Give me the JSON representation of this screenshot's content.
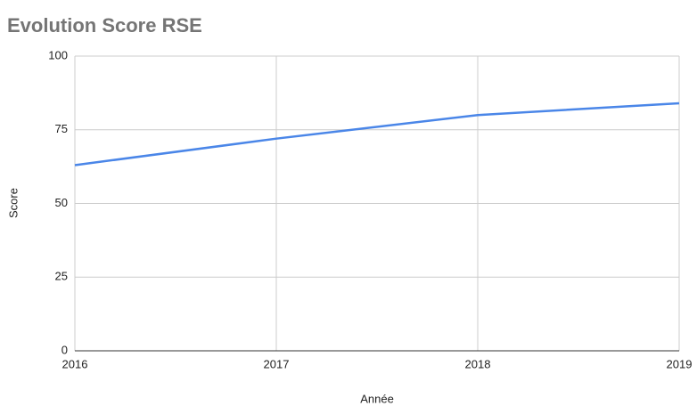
{
  "chart_data": {
    "type": "line",
    "title": "Evolution Score RSE",
    "x_label": "Année",
    "y_label": "Score",
    "x": [
      2016,
      2017,
      2018,
      2019
    ],
    "series": [
      {
        "name": "Score",
        "color": "#4a86e8",
        "values": [
          63,
          72,
          80,
          84
        ]
      }
    ],
    "xlim": [
      2016,
      2019
    ],
    "xticks": [
      2016,
      2017,
      2018,
      2019
    ],
    "ylim": [
      0,
      100
    ],
    "yticks": [
      0,
      25,
      50,
      75,
      100
    ],
    "grid": true
  }
}
